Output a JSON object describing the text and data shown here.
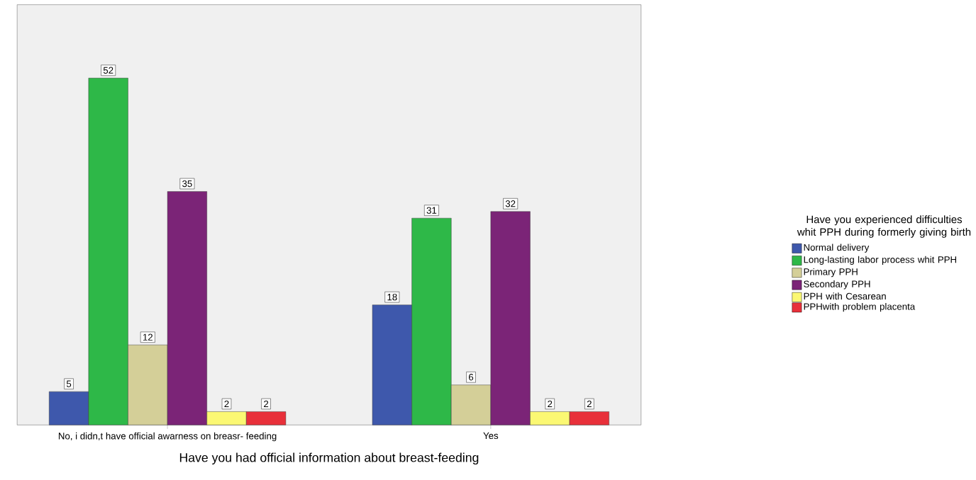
{
  "chart_data": {
    "type": "bar",
    "xlabel": "Have you had official information about breast-feeding",
    "legend_title": "Have you experienced difficulties whit PPH during formerly giving birth",
    "categories": [
      "No, i didn,t have official awarness on breasr- feeding",
      "Yes"
    ],
    "series": [
      {
        "name": "Normal delivery",
        "color": "#3e58ac",
        "values": [
          5,
          18
        ]
      },
      {
        "name": "Long-lasting labor process whit PPH",
        "color": "#2eb848",
        "values": [
          52,
          31
        ]
      },
      {
        "name": "Primary PPH",
        "color": "#d4cf98",
        "values": [
          12,
          6
        ]
      },
      {
        "name": "Secondary PPH",
        "color": "#7b2477",
        "values": [
          35,
          32
        ]
      },
      {
        "name": "PPH with Cesarean",
        "color": "#fbf873",
        "values": [
          2,
          2
        ]
      },
      {
        "name": "PPHwith problem placenta",
        "color": "#e8303a",
        "values": [
          2,
          2
        ]
      }
    ],
    "ylim": [
      0,
      63
    ],
    "data_labels": true,
    "legend": "right",
    "grid": false,
    "tick_labels": "x"
  }
}
